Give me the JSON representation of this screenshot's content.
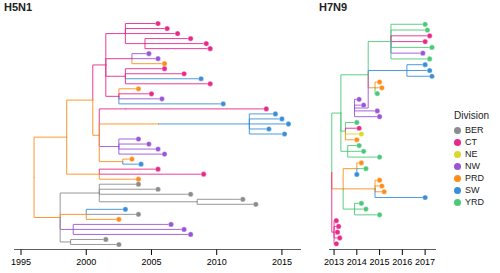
{
  "chart_data": [
    {
      "type": "tree",
      "title": "H5N1",
      "xlim": [
        1994.5,
        2016.5
      ],
      "xticks": [
        1995,
        2000,
        2005,
        2010,
        2015
      ],
      "tree": {
        "date": 1996.0,
        "division": "PRD",
        "children": [
          {
            "date": 1998.5,
            "division": "PRD",
            "children": [
              {
                "date": 2000.5,
                "division": "PRD",
                "children": [
                  {
                    "date": 2001.5,
                    "division": "CT",
                    "children": [
                      {
                        "date": 2003.0,
                        "division": "CT",
                        "children": [
                          {
                            "date": 2005.5,
                            "division": "CT"
                          },
                          {
                            "date": 2006.2,
                            "division": "CT"
                          },
                          {
                            "date": 2007.0,
                            "division": "CT"
                          },
                          {
                            "date": 2004.5,
                            "division": "CT",
                            "children": [
                              {
                                "date": 2008.0,
                                "division": "CT"
                              },
                              {
                                "date": 2009.2,
                                "division": "CT"
                              },
                              {
                                "date": 2009.5,
                                "division": "CT"
                              }
                            ]
                          }
                        ]
                      },
                      {
                        "date": 2003.5,
                        "division": "CT",
                        "children": [
                          {
                            "date": 2004.8,
                            "division": "NW"
                          },
                          {
                            "date": 2005.5,
                            "division": "NW"
                          },
                          {
                            "date": 2006.0,
                            "division": "PRD"
                          }
                        ]
                      },
                      {
                        "date": 2003.0,
                        "division": "CT",
                        "children": [
                          {
                            "date": 2006.0,
                            "division": "CT"
                          },
                          {
                            "date": 2007.5,
                            "division": "CT"
                          },
                          {
                            "date": 2008.8,
                            "division": "SW"
                          },
                          {
                            "date": 2009.5,
                            "division": "CT"
                          }
                        ]
                      },
                      {
                        "date": 2002.5,
                        "division": "CT",
                        "children": [
                          {
                            "date": 2004.0,
                            "division": "PRD"
                          },
                          {
                            "date": 2005.0,
                            "division": "CT"
                          },
                          {
                            "date": 2005.8,
                            "division": "NW"
                          },
                          {
                            "date": 2010.5,
                            "division": "SW"
                          }
                        ]
                      }
                    ]
                  },
                  {
                    "date": 2001.0,
                    "division": "PRD",
                    "children": [
                      {
                        "date": 2003.0,
                        "division": "CT",
                        "children": [
                          {
                            "date": 2013.8,
                            "division": "CT"
                          }
                        ]
                      },
                      {
                        "date": 2005.5,
                        "division": "PRD",
                        "children": [
                          {
                            "date": 2012.5,
                            "division": "SW",
                            "children": [
                              {
                                "date": 2014.5,
                                "division": "SW"
                              },
                              {
                                "date": 2015.0,
                                "division": "SW"
                              },
                              {
                                "date": 2015.5,
                                "division": "SW"
                              },
                              {
                                "date": 2014.0,
                                "division": "SW"
                              },
                              {
                                "date": 2015.2,
                                "division": "SW"
                              }
                            ]
                          }
                        ]
                      },
                      {
                        "date": 2002.5,
                        "division": "NW",
                        "children": [
                          {
                            "date": 2004.0,
                            "division": "NW"
                          },
                          {
                            "date": 2004.8,
                            "division": "NW"
                          },
                          {
                            "date": 2005.5,
                            "division": "NW"
                          },
                          {
                            "date": 2006.0,
                            "division": "NW"
                          }
                        ]
                      },
                      {
                        "date": 2002.8,
                        "division": "PRD",
                        "children": [
                          {
                            "date": 2003.5,
                            "division": "PRD"
                          },
                          {
                            "date": 2004.2,
                            "division": "SW"
                          }
                        ]
                      }
                    ]
                  }
                ]
              },
              {
                "date": 2001.0,
                "division": "PRD",
                "children": [
                  {
                    "date": 2005.5,
                    "division": "CT"
                  },
                  {
                    "date": 2009.0,
                    "division": "CT"
                  },
                  {
                    "date": 2004.0,
                    "division": "PRD"
                  }
                ]
              }
            ]
          },
          {
            "date": 1998.0,
            "division": "PRD",
            "children": [
              {
                "date": 2001.0,
                "division": "BER",
                "children": [
                  {
                    "date": 2004.0,
                    "division": "BER"
                  },
                  {
                    "date": 2005.5,
                    "division": "BER"
                  },
                  {
                    "date": 2008.0,
                    "division": "BER"
                  },
                  {
                    "date": 2008.5,
                    "division": "BER",
                    "children": [
                      {
                        "date": 2012.0,
                        "division": "BER"
                      },
                      {
                        "date": 2013.0,
                        "division": "BER"
                      }
                    ]
                  }
                ]
              },
              {
                "date": 2000.0,
                "division": "PRD",
                "children": [
                  {
                    "date": 2003.0,
                    "division": "SW"
                  },
                  {
                    "date": 2004.0,
                    "division": "BER"
                  },
                  {
                    "date": 2002.5,
                    "division": "PRD"
                  }
                ]
              },
              {
                "date": 1999.0,
                "division": "NW",
                "children": [
                  {
                    "date": 2006.5,
                    "division": "NW"
                  },
                  {
                    "date": 2007.5,
                    "division": "NW"
                  },
                  {
                    "date": 2008.0,
                    "division": "NW"
                  }
                ]
              },
              {
                "date": 1998.8,
                "division": "BER",
                "children": [
                  {
                    "date": 2001.5,
                    "division": "BER"
                  },
                  {
                    "date": 2002.5,
                    "division": "BER"
                  }
                ]
              }
            ]
          }
        ]
      }
    },
    {
      "type": "tree",
      "title": "H7N9",
      "xlim": [
        2012.8,
        2017.5
      ],
      "xticks": [
        2013,
        2014,
        2015,
        2016,
        2017
      ],
      "tree": {
        "date": 2012.9,
        "division": "YRD",
        "children": [
          {
            "date": 2013.3,
            "division": "YRD",
            "children": [
              {
                "date": 2014.5,
                "division": "YRD",
                "children": [
                  {
                    "date": 2015.5,
                    "division": "YRD",
                    "children": [
                      {
                        "date": 2017.0,
                        "division": "YRD"
                      },
                      {
                        "date": 2017.1,
                        "division": "YRD"
                      },
                      {
                        "date": 2017.2,
                        "division": "CT"
                      },
                      {
                        "date": 2017.0,
                        "division": "CT"
                      },
                      {
                        "date": 2017.3,
                        "division": "YRD"
                      },
                      {
                        "date": 2016.9,
                        "division": "NW"
                      },
                      {
                        "date": 2017.2,
                        "division": "YRD"
                      }
                    ]
                  },
                  {
                    "date": 2016.2,
                    "division": "SW",
                    "children": [
                      {
                        "date": 2017.0,
                        "division": "SW"
                      },
                      {
                        "date": 2017.2,
                        "division": "SW"
                      },
                      {
                        "date": 2017.3,
                        "division": "SW"
                      }
                    ]
                  },
                  {
                    "date": 2014.8,
                    "division": "PRD",
                    "children": [
                      {
                        "date": 2015.0,
                        "division": "PRD"
                      },
                      {
                        "date": 2015.1,
                        "division": "PRD"
                      },
                      {
                        "date": 2014.9,
                        "division": "YRD"
                      }
                    ]
                  },
                  {
                    "date": 2013.9,
                    "division": "NW",
                    "children": [
                      {
                        "date": 2014.1,
                        "division": "NW"
                      },
                      {
                        "date": 2014.3,
                        "division": "NW"
                      },
                      {
                        "date": 2014.9,
                        "division": "NW"
                      },
                      {
                        "date": 2015.0,
                        "division": "NW"
                      }
                    ]
                  }
                ]
              },
              {
                "date": 2013.5,
                "division": "YRD",
                "children": [
                  {
                    "date": 2014.0,
                    "division": "YRD"
                  },
                  {
                    "date": 2014.1,
                    "division": "CT"
                  },
                  {
                    "date": 2014.2,
                    "division": "NE"
                  },
                  {
                    "date": 2014.0,
                    "division": "PRD"
                  }
                ]
              },
              {
                "date": 2013.6,
                "division": "YRD",
                "children": [
                  {
                    "date": 2014.1,
                    "division": "YRD"
                  },
                  {
                    "date": 2014.3,
                    "division": "YRD"
                  },
                  {
                    "date": 2015.0,
                    "division": "YRD"
                  }
                ]
              }
            ]
          },
          {
            "date": 2013.4,
            "division": "PRD",
            "children": [
              {
                "date": 2014.0,
                "division": "PRD",
                "children": [
                  {
                    "date": 2014.2,
                    "division": "PRD"
                  },
                  {
                    "date": 2014.4,
                    "division": "YRD"
                  },
                  {
                    "date": 2014.0,
                    "division": "SW"
                  }
                ]
              },
              {
                "date": 2014.8,
                "division": "PRD",
                "children": [
                  {
                    "date": 2015.0,
                    "division": "PRD"
                  },
                  {
                    "date": 2015.1,
                    "division": "PRD"
                  },
                  {
                    "date": 2015.2,
                    "division": "PRD"
                  },
                  {
                    "date": 2017.0,
                    "division": "SW"
                  }
                ]
              },
              {
                "date": 2013.9,
                "division": "YRD",
                "children": [
                  {
                    "date": 2014.2,
                    "division": "YRD"
                  },
                  {
                    "date": 2014.4,
                    "division": "YRD"
                  },
                  {
                    "date": 2015.0,
                    "division": "YRD"
                  }
                ]
              }
            ]
          },
          {
            "date": 2013.0,
            "division": "CT",
            "children": [
              {
                "date": 2013.1,
                "division": "CT"
              },
              {
                "date": 2013.2,
                "division": "CT"
              },
              {
                "date": 2013.15,
                "division": "CT"
              },
              {
                "date": 2013.25,
                "division": "CT"
              },
              {
                "date": 2013.1,
                "division": "CT"
              }
            ]
          }
        ]
      }
    }
  ],
  "key": {
    "title": "Division",
    "divisions": [
      {
        "name": "BER",
        "color": "#8c8c8c"
      },
      {
        "name": "CT",
        "color": "#e7298a"
      },
      {
        "name": "NE",
        "color": "#d9d92b"
      },
      {
        "name": "NW",
        "color": "#9a55d6"
      },
      {
        "name": "PRD",
        "color": "#ff8c1a"
      },
      {
        "name": "SW",
        "color": "#3a8fd9"
      },
      {
        "name": "YRD",
        "color": "#4cc978"
      }
    ]
  }
}
